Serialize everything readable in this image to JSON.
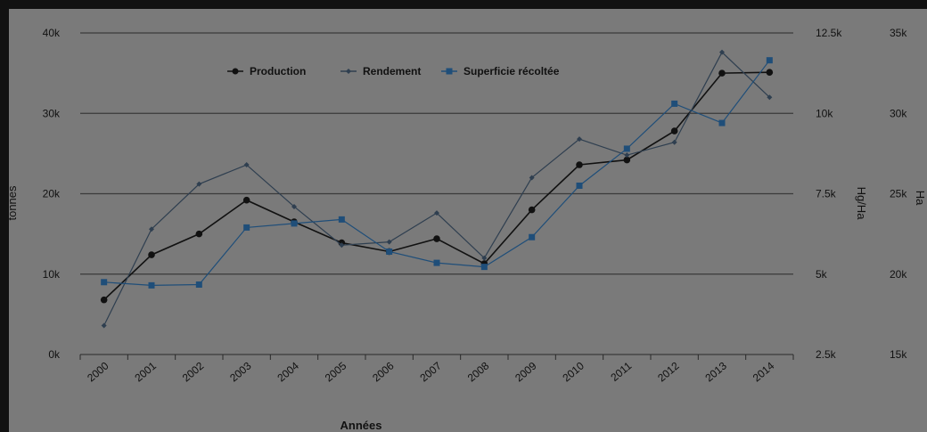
{
  "chart_data": {
    "type": "line",
    "categories": [
      "2000",
      "2001",
      "2002",
      "2003",
      "2004",
      "2005",
      "2006",
      "2007",
      "2008",
      "2009",
      "2010",
      "2011",
      "2012",
      "2013",
      "2014"
    ],
    "xlabel": "Années",
    "ylabel_left": "tonnes",
    "ylabel_right1": "Hg/Ha",
    "ylabel_right2": "Ha",
    "y_left": {
      "range": [
        0,
        40000
      ],
      "ticks": [
        0,
        10000,
        20000,
        30000,
        40000
      ],
      "tick_labels": [
        "0k",
        "10k",
        "20k",
        "30k",
        "40k"
      ]
    },
    "y_right1": {
      "range": [
        2500,
        12500
      ],
      "ticks": [
        2500,
        5000,
        7500,
        10000,
        12500
      ],
      "tick_labels": [
        "2.5k",
        "5k",
        "7.5k",
        "10k",
        "12.5k"
      ]
    },
    "y_right2": {
      "range": [
        15000,
        35000
      ],
      "ticks": [
        15000,
        20000,
        25000,
        30000,
        35000
      ],
      "tick_labels": [
        "15k",
        "20k",
        "25k",
        "30k",
        "35k"
      ]
    },
    "grid": true,
    "legend_position": "top",
    "series": [
      {
        "name": "Production",
        "axis": "left",
        "color": "#111111",
        "marker": "circle",
        "values": [
          6800,
          12400,
          15000,
          19200,
          16500,
          13900,
          12800,
          14400,
          11300,
          18000,
          23600,
          24200,
          27800,
          35000,
          35100
        ]
      },
      {
        "name": "Rendement",
        "axis": "right1",
        "color": "#2f3f50",
        "marker": "diamond",
        "values": [
          3400,
          6400,
          7800,
          8400,
          7100,
          5900,
          6000,
          6900,
          5500,
          8000,
          9200,
          8700,
          9100,
          11900,
          10500
        ]
      },
      {
        "name": "Superficie récoltée",
        "axis": "right2",
        "color": "#1f4e79",
        "marker": "square",
        "values": [
          19500,
          19300,
          19350,
          22900,
          23150,
          23400,
          21400,
          20700,
          20450,
          22300,
          25500,
          27800,
          30600,
          29400,
          33300
        ]
      }
    ]
  }
}
